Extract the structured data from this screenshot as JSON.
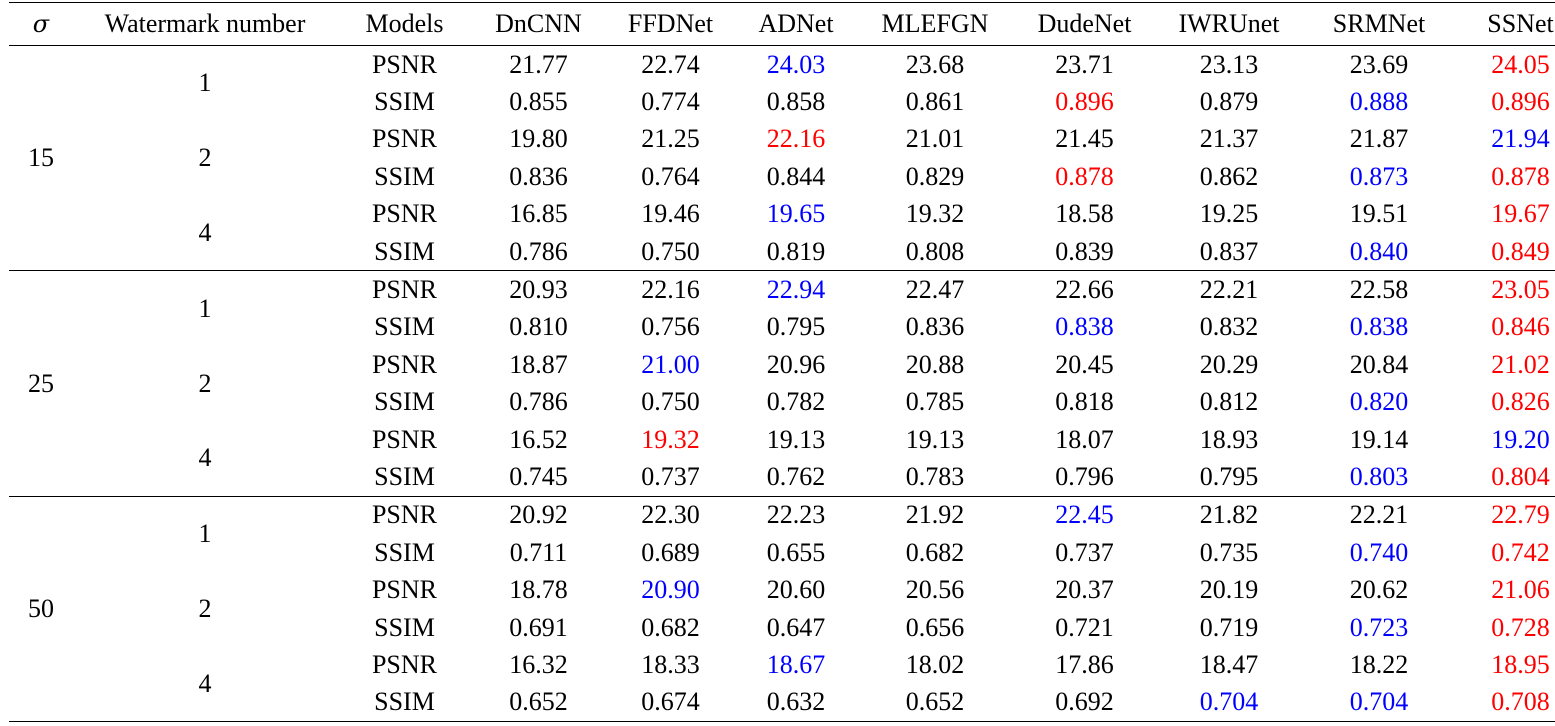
{
  "table": {
    "headers": [
      "σ",
      "Watermark number",
      "Models",
      "DnCNN",
      "FFDNet",
      "ADNet",
      "MLEFGN",
      "DudeNet",
      "IWRUnet",
      "SRMNet",
      "SSNet"
    ],
    "groups": [
      {
        "sigma": "15",
        "subgroups": [
          {
            "watermark": "1",
            "rows": [
              {
                "metric": "PSNR",
                "values": [
                  "21.77",
                  "22.74",
                  "24.03",
                  "23.68",
                  "23.71",
                  "23.13",
                  "23.69",
                  "24.05"
                ],
                "hl": [
                  "",
                  "",
                  "blue",
                  "",
                  "",
                  "",
                  "",
                  "red"
                ]
              },
              {
                "metric": "SSIM",
                "values": [
                  "0.855",
                  "0.774",
                  "0.858",
                  "0.861",
                  "0.896",
                  "0.879",
                  "0.888",
                  "0.896"
                ],
                "hl": [
                  "",
                  "",
                  "",
                  "",
                  "red",
                  "",
                  "blue",
                  "red"
                ]
              }
            ]
          },
          {
            "watermark": "2",
            "rows": [
              {
                "metric": "PSNR",
                "values": [
                  "19.80",
                  "21.25",
                  "22.16",
                  "21.01",
                  "21.45",
                  "21.37",
                  "21.87",
                  "21.94"
                ],
                "hl": [
                  "",
                  "",
                  "red",
                  "",
                  "",
                  "",
                  "",
                  "blue"
                ]
              },
              {
                "metric": "SSIM",
                "values": [
                  "0.836",
                  "0.764",
                  "0.844",
                  "0.829",
                  "0.878",
                  "0.862",
                  "0.873",
                  "0.878"
                ],
                "hl": [
                  "",
                  "",
                  "",
                  "",
                  "red",
                  "",
                  "blue",
                  "red"
                ]
              }
            ]
          },
          {
            "watermark": "4",
            "rows": [
              {
                "metric": "PSNR",
                "values": [
                  "16.85",
                  "19.46",
                  "19.65",
                  "19.32",
                  "18.58",
                  "19.25",
                  "19.51",
                  "19.67"
                ],
                "hl": [
                  "",
                  "",
                  "blue",
                  "",
                  "",
                  "",
                  "",
                  "red"
                ]
              },
              {
                "metric": "SSIM",
                "values": [
                  "0.786",
                  "0.750",
                  "0.819",
                  "0.808",
                  "0.839",
                  "0.837",
                  "0.840",
                  "0.849"
                ],
                "hl": [
                  "",
                  "",
                  "",
                  "",
                  "",
                  "",
                  "blue",
                  "red"
                ]
              }
            ]
          }
        ]
      },
      {
        "sigma": "25",
        "subgroups": [
          {
            "watermark": "1",
            "rows": [
              {
                "metric": "PSNR",
                "values": [
                  "20.93",
                  "22.16",
                  "22.94",
                  "22.47",
                  "22.66",
                  "22.21",
                  "22.58",
                  "23.05"
                ],
                "hl": [
                  "",
                  "",
                  "blue",
                  "",
                  "",
                  "",
                  "",
                  "red"
                ]
              },
              {
                "metric": "SSIM",
                "values": [
                  "0.810",
                  "0.756",
                  "0.795",
                  "0.836",
                  "0.838",
                  "0.832",
                  "0.838",
                  "0.846"
                ],
                "hl": [
                  "",
                  "",
                  "",
                  "",
                  "blue",
                  "",
                  "blue",
                  "red"
                ]
              }
            ]
          },
          {
            "watermark": "2",
            "rows": [
              {
                "metric": "PSNR",
                "values": [
                  "18.87",
                  "21.00",
                  "20.96",
                  "20.88",
                  "20.45",
                  "20.29",
                  "20.84",
                  "21.02"
                ],
                "hl": [
                  "",
                  "blue",
                  "",
                  "",
                  "",
                  "",
                  "",
                  "red"
                ]
              },
              {
                "metric": "SSIM",
                "values": [
                  "0.786",
                  "0.750",
                  "0.782",
                  "0.785",
                  "0.818",
                  "0.812",
                  "0.820",
                  "0.826"
                ],
                "hl": [
                  "",
                  "",
                  "",
                  "",
                  "",
                  "",
                  "blue",
                  "red"
                ]
              }
            ]
          },
          {
            "watermark": "4",
            "rows": [
              {
                "metric": "PSNR",
                "values": [
                  "16.52",
                  "19.32",
                  "19.13",
                  "19.13",
                  "18.07",
                  "18.93",
                  "19.14",
                  "19.20"
                ],
                "hl": [
                  "",
                  "red",
                  "",
                  "",
                  "",
                  "",
                  "",
                  "blue"
                ]
              },
              {
                "metric": "SSIM",
                "values": [
                  "0.745",
                  "0.737",
                  "0.762",
                  "0.783",
                  "0.796",
                  "0.795",
                  "0.803",
                  "0.804"
                ],
                "hl": [
                  "",
                  "",
                  "",
                  "",
                  "",
                  "",
                  "blue",
                  "red"
                ]
              }
            ]
          }
        ]
      },
      {
        "sigma": "50",
        "subgroups": [
          {
            "watermark": "1",
            "rows": [
              {
                "metric": "PSNR",
                "values": [
                  "20.92",
                  "22.30",
                  "22.23",
                  "21.92",
                  "22.45",
                  "21.82",
                  "22.21",
                  "22.79"
                ],
                "hl": [
                  "",
                  "",
                  "",
                  "",
                  "blue",
                  "",
                  "",
                  "red"
                ]
              },
              {
                "metric": "SSIM",
                "values": [
                  "0.711",
                  "0.689",
                  "0.655",
                  "0.682",
                  "0.737",
                  "0.735",
                  "0.740",
                  "0.742"
                ],
                "hl": [
                  "",
                  "",
                  "",
                  "",
                  "",
                  "",
                  "blue",
                  "red"
                ]
              }
            ]
          },
          {
            "watermark": "2",
            "rows": [
              {
                "metric": "PSNR",
                "values": [
                  "18.78",
                  "20.90",
                  "20.60",
                  "20.56",
                  "20.37",
                  "20.19",
                  "20.62",
                  "21.06"
                ],
                "hl": [
                  "",
                  "blue",
                  "",
                  "",
                  "",
                  "",
                  "",
                  "red"
                ]
              },
              {
                "metric": "SSIM",
                "values": [
                  "0.691",
                  "0.682",
                  "0.647",
                  "0.656",
                  "0.721",
                  "0.719",
                  "0.723",
                  "0.728"
                ],
                "hl": [
                  "",
                  "",
                  "",
                  "",
                  "",
                  "",
                  "blue",
                  "red"
                ]
              }
            ]
          },
          {
            "watermark": "4",
            "rows": [
              {
                "metric": "PSNR",
                "values": [
                  "16.32",
                  "18.33",
                  "18.67",
                  "18.02",
                  "17.86",
                  "18.47",
                  "18.22",
                  "18.95"
                ],
                "hl": [
                  "",
                  "",
                  "blue",
                  "",
                  "",
                  "",
                  "",
                  "red"
                ]
              },
              {
                "metric": "SSIM",
                "values": [
                  "0.652",
                  "0.674",
                  "0.632",
                  "0.652",
                  "0.692",
                  "0.704",
                  "0.704",
                  "0.708"
                ],
                "hl": [
                  "",
                  "",
                  "",
                  "",
                  "",
                  "blue",
                  "blue",
                  "red"
                ]
              }
            ]
          }
        ]
      }
    ]
  }
}
